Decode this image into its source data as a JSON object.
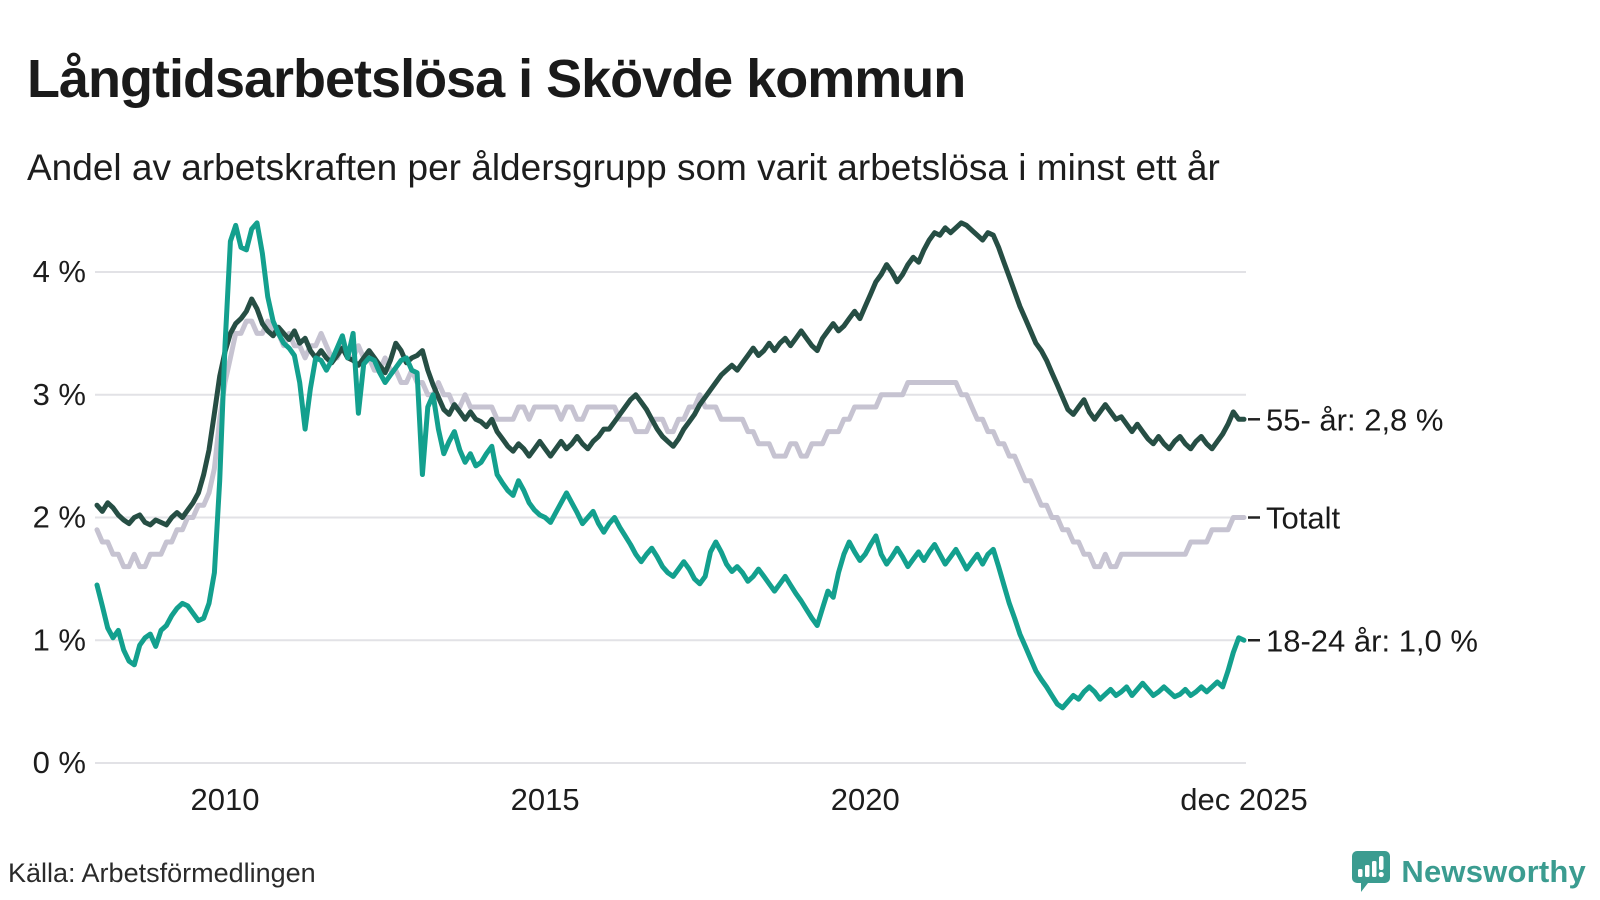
{
  "title": "Långtidsarbetslösa i Skövde kommun",
  "subtitle": "Andel av arbetskraften per åldersgrupp som varit arbetslösa i minst ett år",
  "source": {
    "text": "Källa: Arbetsförmedlingen"
  },
  "brand": {
    "name": "Newsworthy",
    "color": "#3b9c90"
  },
  "colors": {
    "grid": "#e2e2e6",
    "text": "#1a1a1a",
    "axis_text": "#1d1d1d",
    "series_55": "#264e44",
    "series_total": "#c6c3d1",
    "series_1824": "#13a08e"
  },
  "chart_data": {
    "type": "line",
    "title": "Långtidsarbetslösa i Skövde kommun",
    "subtitle": "Andel av arbetskraften per åldersgrupp som varit arbetslösa i minst ett år",
    "unit": "%",
    "grid": true,
    "legend_position": "right-end-labels",
    "x_domain": {
      "start": 2008.0,
      "end": 2025.9167,
      "step_months": 1
    },
    "ylim": [
      0,
      4.6
    ],
    "y_ticks": [
      {
        "value": 0,
        "label": "0 %"
      },
      {
        "value": 1,
        "label": "1 %"
      },
      {
        "value": 2,
        "label": "2 %"
      },
      {
        "value": 3,
        "label": "3 %"
      },
      {
        "value": 4,
        "label": "4 %"
      }
    ],
    "x_ticks": [
      {
        "t": 2010.0,
        "label": "2010"
      },
      {
        "t": 2015.0,
        "label": "2015"
      },
      {
        "t": 2020.0,
        "label": "2020"
      },
      {
        "t": 2025.9167,
        "label": "dec 2025"
      }
    ],
    "series": [
      {
        "name": "55- år",
        "end_label": "55- år: 2,8 %",
        "color": "#264e44",
        "z": 2,
        "values": [
          2.1,
          2.05,
          2.12,
          2.08,
          2.02,
          1.98,
          1.95,
          2.0,
          2.02,
          1.96,
          1.94,
          1.98,
          1.96,
          1.94,
          2.0,
          2.04,
          2.0,
          2.06,
          2.12,
          2.2,
          2.35,
          2.55,
          2.85,
          3.15,
          3.35,
          3.5,
          3.58,
          3.62,
          3.68,
          3.78,
          3.7,
          3.58,
          3.52,
          3.48,
          3.55,
          3.5,
          3.45,
          3.52,
          3.42,
          3.46,
          3.36,
          3.3,
          3.36,
          3.3,
          3.26,
          3.32,
          3.38,
          3.3,
          3.28,
          3.24,
          3.3,
          3.36,
          3.3,
          3.24,
          3.18,
          3.28,
          3.42,
          3.36,
          3.26,
          3.3,
          3.32,
          3.36,
          3.2,
          3.08,
          2.98,
          2.88,
          2.84,
          2.92,
          2.86,
          2.8,
          2.86,
          2.8,
          2.78,
          2.74,
          2.8,
          2.7,
          2.64,
          2.58,
          2.54,
          2.6,
          2.56,
          2.5,
          2.56,
          2.62,
          2.56,
          2.5,
          2.56,
          2.62,
          2.56,
          2.6,
          2.66,
          2.6,
          2.56,
          2.62,
          2.66,
          2.72,
          2.72,
          2.78,
          2.84,
          2.9,
          2.96,
          3.0,
          2.94,
          2.88,
          2.8,
          2.72,
          2.66,
          2.62,
          2.58,
          2.64,
          2.72,
          2.78,
          2.84,
          2.92,
          2.98,
          3.04,
          3.1,
          3.16,
          3.2,
          3.24,
          3.2,
          3.26,
          3.32,
          3.38,
          3.32,
          3.36,
          3.42,
          3.36,
          3.42,
          3.46,
          3.4,
          3.46,
          3.52,
          3.46,
          3.4,
          3.36,
          3.46,
          3.52,
          3.58,
          3.52,
          3.56,
          3.62,
          3.68,
          3.62,
          3.72,
          3.82,
          3.92,
          3.98,
          4.06,
          4.0,
          3.92,
          3.98,
          4.06,
          4.12,
          4.08,
          4.18,
          4.26,
          4.32,
          4.3,
          4.36,
          4.32,
          4.36,
          4.4,
          4.38,
          4.34,
          4.3,
          4.26,
          4.32,
          4.3,
          4.2,
          4.08,
          3.96,
          3.84,
          3.72,
          3.62,
          3.52,
          3.42,
          3.36,
          3.28,
          3.18,
          3.08,
          2.98,
          2.88,
          2.84,
          2.9,
          2.96,
          2.86,
          2.8,
          2.86,
          2.92,
          2.86,
          2.8,
          2.82,
          2.76,
          2.7,
          2.76,
          2.7,
          2.64,
          2.6,
          2.66,
          2.6,
          2.56,
          2.62,
          2.66,
          2.6,
          2.56,
          2.62,
          2.66,
          2.6,
          2.56,
          2.62,
          2.68,
          2.76,
          2.86,
          2.8,
          2.8
        ]
      },
      {
        "name": "Totalt",
        "end_label": "Totalt",
        "color": "#c6c3d1",
        "z": 1,
        "values": [
          1.9,
          1.8,
          1.8,
          1.7,
          1.7,
          1.6,
          1.6,
          1.7,
          1.6,
          1.6,
          1.7,
          1.7,
          1.7,
          1.8,
          1.8,
          1.9,
          1.9,
          2.0,
          2.0,
          2.1,
          2.1,
          2.2,
          2.4,
          2.8,
          3.1,
          3.3,
          3.5,
          3.5,
          3.6,
          3.6,
          3.5,
          3.5,
          3.6,
          3.5,
          3.5,
          3.4,
          3.5,
          3.4,
          3.4,
          3.3,
          3.4,
          3.4,
          3.5,
          3.4,
          3.3,
          3.3,
          3.4,
          3.3,
          3.3,
          3.4,
          3.3,
          3.3,
          3.2,
          3.2,
          3.3,
          3.2,
          3.2,
          3.1,
          3.1,
          3.2,
          3.1,
          3.1,
          3.0,
          3.0,
          3.1,
          3.0,
          3.0,
          2.9,
          2.9,
          3.0,
          2.9,
          2.9,
          2.9,
          2.9,
          2.9,
          2.8,
          2.8,
          2.8,
          2.8,
          2.9,
          2.9,
          2.8,
          2.9,
          2.9,
          2.9,
          2.9,
          2.9,
          2.8,
          2.9,
          2.9,
          2.8,
          2.8,
          2.9,
          2.9,
          2.9,
          2.9,
          2.9,
          2.9,
          2.8,
          2.8,
          2.8,
          2.7,
          2.7,
          2.7,
          2.8,
          2.8,
          2.8,
          2.7,
          2.7,
          2.8,
          2.8,
          2.9,
          2.9,
          3.0,
          2.9,
          2.9,
          2.9,
          2.8,
          2.8,
          2.8,
          2.8,
          2.8,
          2.7,
          2.7,
          2.6,
          2.6,
          2.6,
          2.5,
          2.5,
          2.5,
          2.6,
          2.6,
          2.5,
          2.5,
          2.6,
          2.6,
          2.6,
          2.7,
          2.7,
          2.7,
          2.8,
          2.8,
          2.9,
          2.9,
          2.9,
          2.9,
          2.9,
          3.0,
          3.0,
          3.0,
          3.0,
          3.0,
          3.1,
          3.1,
          3.1,
          3.1,
          3.1,
          3.1,
          3.1,
          3.1,
          3.1,
          3.1,
          3.0,
          3.0,
          2.9,
          2.8,
          2.8,
          2.7,
          2.7,
          2.6,
          2.6,
          2.5,
          2.5,
          2.4,
          2.3,
          2.3,
          2.2,
          2.1,
          2.1,
          2.0,
          2.0,
          1.9,
          1.9,
          1.8,
          1.8,
          1.7,
          1.7,
          1.6,
          1.6,
          1.7,
          1.6,
          1.6,
          1.7,
          1.7,
          1.7,
          1.7,
          1.7,
          1.7,
          1.7,
          1.7,
          1.7,
          1.7,
          1.7,
          1.7,
          1.7,
          1.8,
          1.8,
          1.8,
          1.8,
          1.9,
          1.9,
          1.9,
          1.9,
          2.0,
          2.0,
          2.0
        ]
      },
      {
        "name": "18-24 år",
        "end_label": "18-24 år: 1,0 %",
        "color": "#13a08e",
        "z": 3,
        "values": [
          1.45,
          1.28,
          1.1,
          1.02,
          1.08,
          0.92,
          0.83,
          0.8,
          0.96,
          1.02,
          1.05,
          0.95,
          1.08,
          1.12,
          1.2,
          1.26,
          1.3,
          1.28,
          1.22,
          1.16,
          1.18,
          1.3,
          1.55,
          2.3,
          3.4,
          4.25,
          4.38,
          4.2,
          4.18,
          4.35,
          4.4,
          4.15,
          3.8,
          3.6,
          3.5,
          3.42,
          3.38,
          3.32,
          3.1,
          2.72,
          3.05,
          3.3,
          3.28,
          3.2,
          3.28,
          3.38,
          3.48,
          3.3,
          3.5,
          2.85,
          3.25,
          3.3,
          3.28,
          3.18,
          3.1,
          3.16,
          3.22,
          3.28,
          3.3,
          3.2,
          3.18,
          2.35,
          2.9,
          3.0,
          2.72,
          2.52,
          2.62,
          2.7,
          2.55,
          2.45,
          2.52,
          2.42,
          2.45,
          2.52,
          2.58,
          2.35,
          2.28,
          2.22,
          2.18,
          2.3,
          2.22,
          2.12,
          2.06,
          2.02,
          2.0,
          1.96,
          2.04,
          2.12,
          2.2,
          2.12,
          2.04,
          1.95,
          2.0,
          2.05,
          1.95,
          1.88,
          1.95,
          2.0,
          1.92,
          1.85,
          1.78,
          1.7,
          1.64,
          1.7,
          1.75,
          1.68,
          1.6,
          1.55,
          1.52,
          1.58,
          1.64,
          1.58,
          1.5,
          1.46,
          1.52,
          1.72,
          1.8,
          1.72,
          1.62,
          1.56,
          1.6,
          1.55,
          1.48,
          1.52,
          1.58,
          1.52,
          1.46,
          1.4,
          1.46,
          1.52,
          1.45,
          1.38,
          1.32,
          1.25,
          1.18,
          1.12,
          1.26,
          1.4,
          1.35,
          1.55,
          1.7,
          1.8,
          1.72,
          1.65,
          1.7,
          1.78,
          1.85,
          1.7,
          1.62,
          1.68,
          1.75,
          1.68,
          1.6,
          1.66,
          1.72,
          1.65,
          1.72,
          1.78,
          1.7,
          1.62,
          1.68,
          1.74,
          1.66,
          1.58,
          1.64,
          1.7,
          1.62,
          1.7,
          1.74,
          1.6,
          1.45,
          1.3,
          1.18,
          1.05,
          0.95,
          0.85,
          0.75,
          0.68,
          0.62,
          0.55,
          0.48,
          0.45,
          0.5,
          0.55,
          0.52,
          0.58,
          0.62,
          0.58,
          0.52,
          0.56,
          0.6,
          0.55,
          0.58,
          0.62,
          0.55,
          0.6,
          0.65,
          0.6,
          0.55,
          0.58,
          0.62,
          0.58,
          0.54,
          0.56,
          0.6,
          0.55,
          0.58,
          0.62,
          0.58,
          0.62,
          0.66,
          0.62,
          0.75,
          0.9,
          1.02,
          1.0
        ]
      }
    ]
  }
}
